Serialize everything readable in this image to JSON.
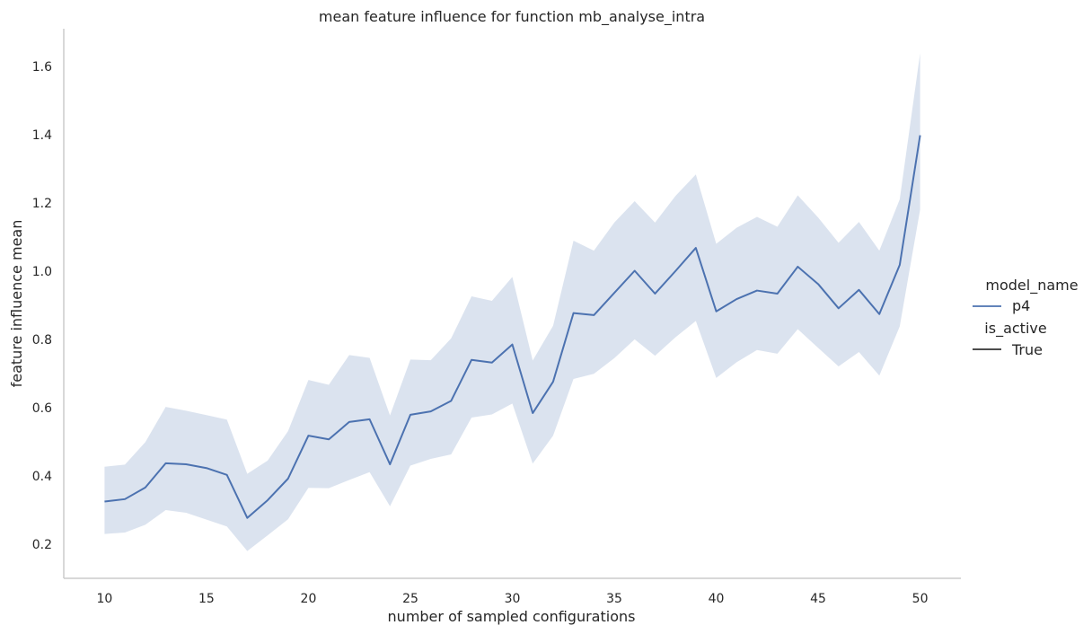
{
  "chart_data": {
    "type": "line",
    "title": "mean feature influence for function mb_analyse_intra",
    "xlabel": "number of sampled configurations",
    "ylabel": "feature influence mean",
    "xlim": [
      8,
      52
    ],
    "ylim": [
      0.1,
      1.71
    ],
    "xticks": [
      10,
      15,
      20,
      25,
      30,
      35,
      40,
      45,
      50
    ],
    "yticks": [
      0.2,
      0.4,
      0.6,
      0.8,
      1.0,
      1.2,
      1.4,
      1.6
    ],
    "grid": false,
    "legend": {
      "placement": "right",
      "hue_title": "model_name",
      "style_title": "is_active",
      "entries": [
        {
          "label": "p4",
          "group": "hue",
          "color": "#4c72b0"
        },
        {
          "label": "True",
          "group": "style",
          "color": "#333333"
        }
      ]
    },
    "series": [
      {
        "name": "p4",
        "color": "#4c72b0",
        "band_color": "#4c72b0",
        "band_opacity": 0.2,
        "x": [
          10,
          11,
          12,
          13,
          14,
          15,
          16,
          17,
          18,
          19,
          20,
          21,
          22,
          23,
          24,
          25,
          26,
          27,
          28,
          29,
          30,
          31,
          32,
          33,
          34,
          35,
          36,
          37,
          38,
          39,
          40,
          41,
          42,
          43,
          44,
          45,
          46,
          47,
          48,
          49,
          50
        ],
        "y": [
          0.325,
          0.332,
          0.366,
          0.437,
          0.434,
          0.423,
          0.403,
          0.277,
          0.329,
          0.392,
          0.518,
          0.507,
          0.558,
          0.566,
          0.434,
          0.579,
          0.589,
          0.62,
          0.74,
          0.732,
          0.785,
          0.584,
          0.676,
          0.877,
          0.871,
          0.936,
          1.001,
          0.934,
          1.0,
          1.068,
          0.882,
          0.918,
          0.943,
          0.934,
          1.013,
          0.962,
          0.891,
          0.945,
          0.874,
          1.018,
          1.398
        ],
        "lower": [
          0.23,
          0.234,
          0.257,
          0.3,
          0.292,
          0.272,
          0.252,
          0.18,
          0.226,
          0.273,
          0.365,
          0.364,
          0.388,
          0.411,
          0.311,
          0.43,
          0.45,
          0.463,
          0.571,
          0.58,
          0.612,
          0.436,
          0.518,
          0.684,
          0.699,
          0.745,
          0.8,
          0.752,
          0.806,
          0.854,
          0.687,
          0.733,
          0.769,
          0.758,
          0.83,
          0.775,
          0.721,
          0.763,
          0.694,
          0.838,
          1.18
        ],
        "upper": [
          0.427,
          0.433,
          0.499,
          0.602,
          0.591,
          0.578,
          0.565,
          0.406,
          0.445,
          0.531,
          0.681,
          0.667,
          0.754,
          0.746,
          0.577,
          0.741,
          0.739,
          0.803,
          0.926,
          0.913,
          0.983,
          0.738,
          0.84,
          1.089,
          1.06,
          1.142,
          1.205,
          1.142,
          1.22,
          1.283,
          1.08,
          1.127,
          1.159,
          1.13,
          1.222,
          1.157,
          1.083,
          1.144,
          1.06,
          1.21,
          1.638
        ]
      }
    ]
  }
}
